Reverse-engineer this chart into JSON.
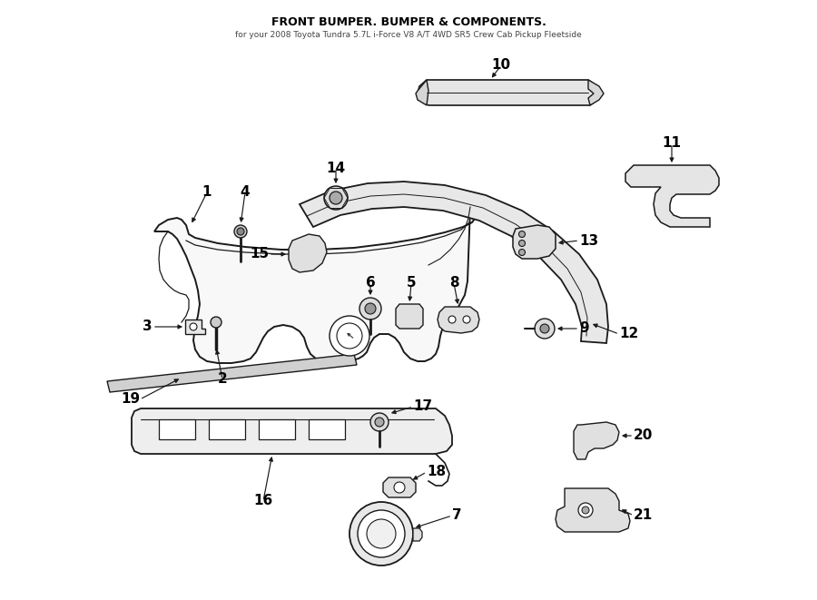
{
  "title": "FRONT BUMPER. BUMPER & COMPONENTS.",
  "subtitle": "for your 2008 Toyota Tundra 5.7L i-Force V8 A/T 4WD SR5 Crew Cab Pickup Fleetside",
  "bg_color": "#ffffff",
  "line_color": "#1a1a1a",
  "label_color": "#000000",
  "fig_width": 9.0,
  "fig_height": 6.61,
  "dpi": 100
}
